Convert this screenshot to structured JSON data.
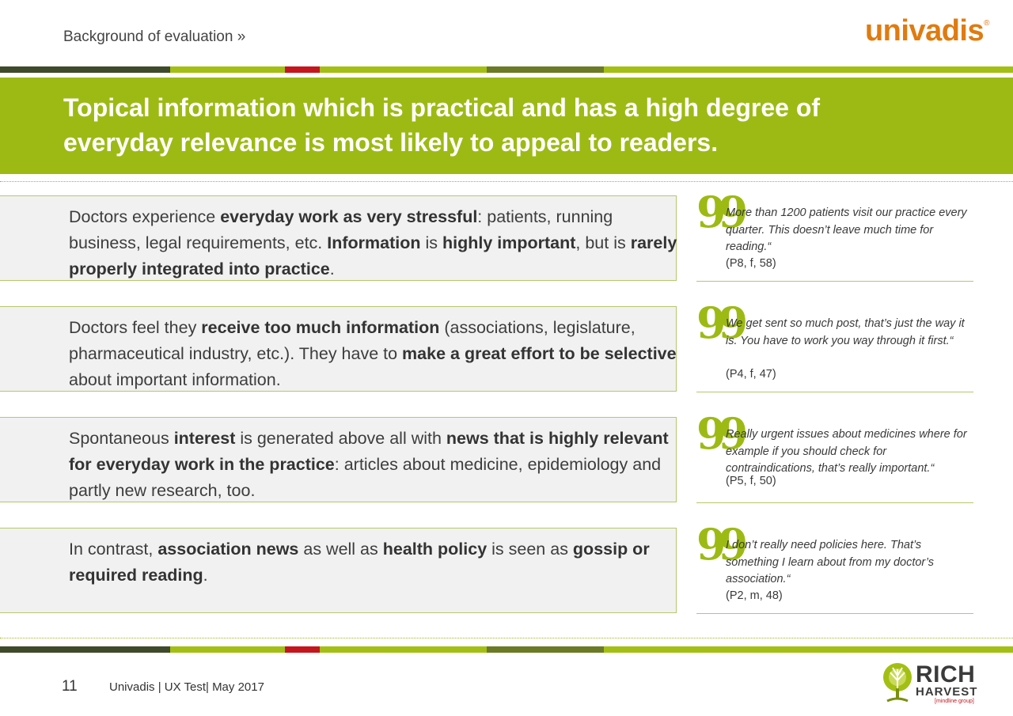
{
  "header": {
    "breadcrumb": "Background of evaluation »",
    "brand": "univadis",
    "brand_mark": "®"
  },
  "banner": {
    "title_line1": "Topical information which is practical and has a high degree of",
    "title_line2": "everyday relevance is most likely to appeal to readers."
  },
  "rows": [
    {
      "segments": [
        {
          "t": "Doctors experience ",
          "b": false
        },
        {
          "t": "everyday work as very stressful",
          "b": true
        },
        {
          "t": ": patients, running business, legal requirements, etc. ",
          "b": false
        },
        {
          "t": "Information",
          "b": true
        },
        {
          "t": " is ",
          "b": false
        },
        {
          "t": "highly important",
          "b": true
        },
        {
          "t": ", but is ",
          "b": false
        },
        {
          "t": "rarely properly integrated into practice",
          "b": true
        },
        {
          "t": ".",
          "b": false
        }
      ],
      "quote": "More than 1200 patients visit our practice every quarter. This doesn’t leave much time for reading.“",
      "source": "(P8, f, 58)"
    },
    {
      "segments": [
        {
          "t": "Doctors feel they ",
          "b": false
        },
        {
          "t": "receive too much information",
          "b": true
        },
        {
          "t": " (associations, legislature, pharmaceutical industry, etc.). They have to ",
          "b": false
        },
        {
          "t": "make a great effort to be selective",
          "b": true
        },
        {
          "t": " about important information.",
          "b": false
        }
      ],
      "quote": "We get sent so much post, that’s just the way it is. You have to work you way through it first.“",
      "source": "(P4, f, 47)"
    },
    {
      "segments": [
        {
          "t": "Spontaneous ",
          "b": false
        },
        {
          "t": "interest",
          "b": true
        },
        {
          "t": " is generated above all with ",
          "b": false
        },
        {
          "t": "news that is highly relevant for everyday work in the practice",
          "b": true
        },
        {
          "t": ": articles about medicine, epidemiology and partly new research, too.",
          "b": false
        }
      ],
      "quote": "Really urgent issues about medicines where for example if you should check for contraindications, that’s really important.“",
      "source": "(P5, f, 50)"
    },
    {
      "segments": [
        {
          "t": "In contrast, ",
          "b": false
        },
        {
          "t": "association news",
          "b": true
        },
        {
          "t": " as well as ",
          "b": false
        },
        {
          "t": "health policy",
          "b": true
        },
        {
          "t": " is seen as ",
          "b": false
        },
        {
          "t": "gossip or required reading",
          "b": true
        },
        {
          "t": ".",
          "b": false
        }
      ],
      "quote": "I don’t really need policies here. That’s something I learn about from my doctor’s association.“",
      "source": "(P2, m, 48)"
    }
  ],
  "quote_glyph": "99",
  "footer": {
    "page_number": "11",
    "text": "Univadis | UX Test| May 2017",
    "logo_word1": "RICH",
    "logo_word2": "HARVEST",
    "logo_sub": "[mindline group]"
  },
  "colors": {
    "accent_green": "#9dba14",
    "brand_orange": "#e07b10",
    "stripe_red": "#c4161c"
  }
}
